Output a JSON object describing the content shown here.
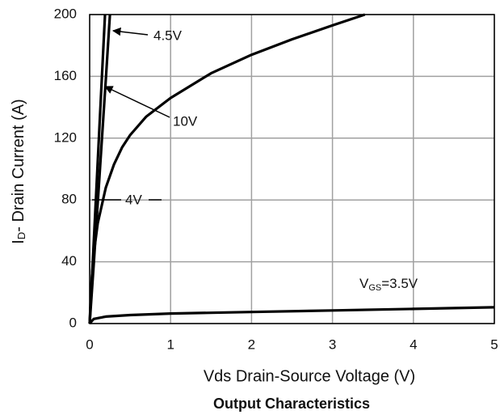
{
  "chart_data": {
    "type": "line",
    "title": "Output Characteristics",
    "x_label": "Vds Drain-Source Voltage (V)",
    "y_label": {
      "text": "I",
      "subscript": "D",
      "suffix": "- Drain Current (A)"
    },
    "xlim": [
      0,
      5
    ],
    "ylim": [
      0,
      200
    ],
    "xticks": [
      0,
      1,
      2,
      3,
      4,
      5
    ],
    "yticks": [
      0,
      40,
      80,
      120,
      160,
      200
    ],
    "grid": true,
    "color": "#000000",
    "series": [
      {
        "x": [
          0,
          0.05,
          0.1,
          0.15,
          0.2,
          0.25
        ],
        "values": [
          0,
          38,
          78,
          118,
          158,
          200
        ]
      },
      {
        "x": [
          0,
          0.05,
          0.1,
          0.15,
          0.19
        ],
        "values": [
          0,
          52,
          105,
          158,
          200
        ]
      },
      {
        "x": [
          0,
          0.02,
          0.05,
          0.1,
          0.2,
          0.3,
          0.4,
          0.5,
          0.7,
          1,
          1.5,
          2,
          2.5,
          3,
          3.4
        ],
        "values": [
          0,
          25,
          45,
          65,
          88,
          103,
          114,
          122,
          134,
          146,
          162,
          174,
          184,
          193,
          200
        ]
      },
      {
        "x": [
          0,
          0.05,
          0.2,
          0.5,
          1,
          2,
          3,
          4,
          5
        ],
        "values": [
          0,
          3,
          4.5,
          5.5,
          6.5,
          7.5,
          8.5,
          9.5,
          10.5
        ]
      }
    ],
    "annotations": [
      {
        "text": "4.5V"
      },
      {
        "text": "10V"
      },
      {
        "text": "4V"
      },
      {
        "text": "V",
        "subscript": "GS",
        "suffix": "=3.5V"
      }
    ]
  }
}
